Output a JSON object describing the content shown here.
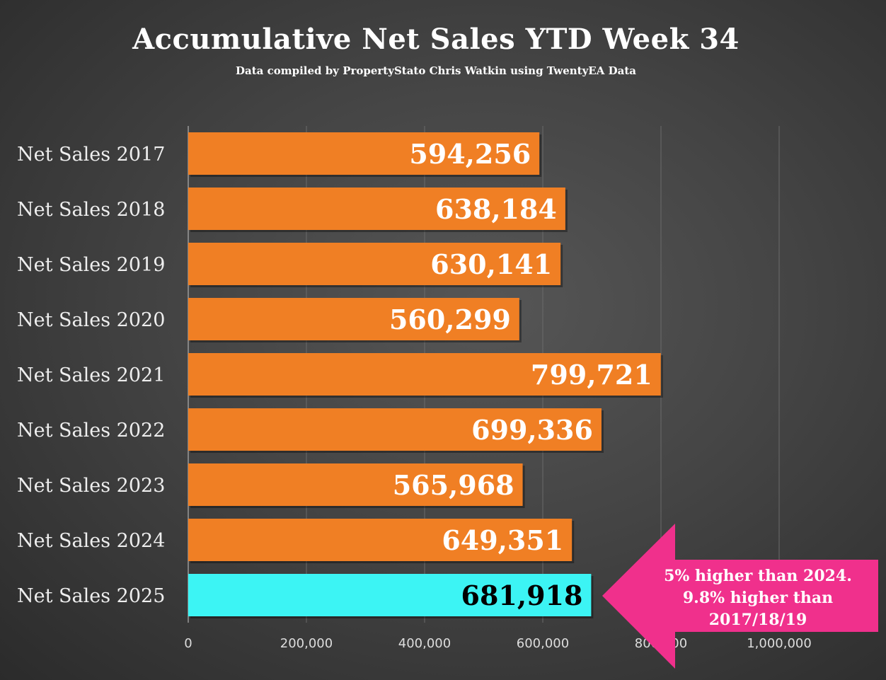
{
  "chart_data": {
    "type": "bar",
    "orientation": "horizontal",
    "title": "Accumulative Net Sales YTD Week 34",
    "subtitle": "Data compiled by PropertyStato Chris Watkin using TwentyEA Data",
    "categories": [
      "Net Sales 2017",
      "Net Sales 2018",
      "Net Sales 2019",
      "Net Sales 2020",
      "Net Sales 2021",
      "Net Sales 2022",
      "Net Sales 2023",
      "Net Sales 2024",
      "Net Sales 2025"
    ],
    "values": [
      594256,
      638184,
      630141,
      560299,
      799721,
      699336,
      565968,
      649351,
      681918
    ],
    "value_labels": [
      "594,256",
      "638,184",
      "630,141",
      "560,299",
      "799,721",
      "699,336",
      "565,968",
      "649,351",
      "681,918"
    ],
    "xticks": [
      0,
      200000,
      400000,
      600000,
      800000,
      1000000
    ],
    "xtick_labels": [
      "0",
      "200,000",
      "400,000",
      "600,000",
      "800,000",
      "1,000,000"
    ],
    "xlim": [
      0,
      1200000
    ],
    "grid": true,
    "colors": {
      "default": "#f07f24",
      "highlight": "#3cf4f4",
      "annotation": "#f0308c"
    },
    "highlight_index": 8,
    "annotation": [
      "5% higher than 2024.",
      "9.8% higher than",
      "2017/18/19"
    ]
  }
}
